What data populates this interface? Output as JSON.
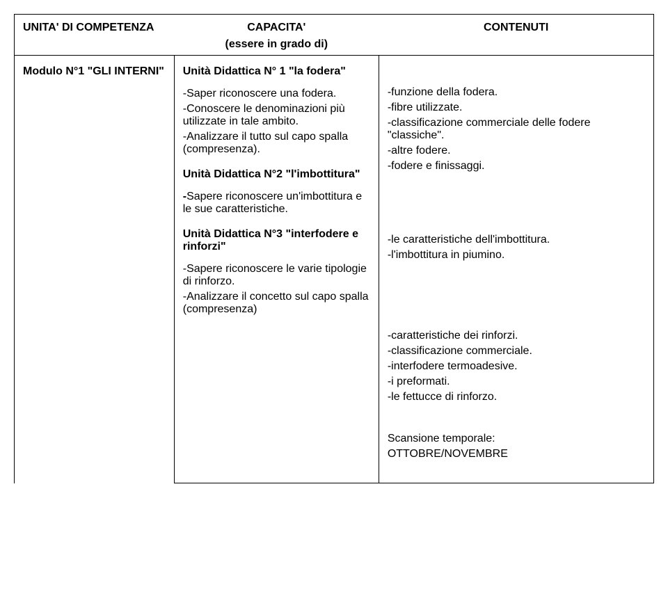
{
  "header": {
    "col1": "UNITA' DI COMPETENZA",
    "col2": "CAPACITA'",
    "col2_sub": "(essere in grado di)",
    "col3": "CONTENUTI"
  },
  "module": {
    "title": "Modulo N°1 \"GLI INTERNI\""
  },
  "capacita": {
    "u1_title": "Unità Didattica N° 1 \"la fodera\"",
    "u1_l1": "-Saper riconoscere una fodera.",
    "u1_l2": "-Conoscere le denominazioni più utilizzate in tale ambito.",
    "u1_l3": "-Analizzare il tutto sul capo spalla (compresenza).",
    "u2_title": "Unità Didattica N°2 \"l'imbottitura\"",
    "u2_l1": "-Sapere riconoscere un'imbottitura e le sue caratteristiche.",
    "u3_title": "Unità Didattica N°3 \"interfodere e rinforzi\"",
    "u3_l1": "-Sapere riconoscere le varie tipologie di rinforzo.",
    "u3_l2": "-Analizzare il concetto sul capo spalla (compresenza)"
  },
  "contenuti": {
    "b1_l1": "-funzione della fodera.",
    "b1_l2": "-fibre utilizzate.",
    "b1_l3": "-classificazione commerciale delle fodere \"classiche\".",
    "b1_l4": "-altre fodere.",
    "b1_l5": "-fodere e finissaggi.",
    "b2_l1": "-le caratteristiche dell'imbottitura.",
    "b2_l2": "-l'imbottitura in piumino.",
    "b3_l1": "-caratteristiche dei rinforzi.",
    "b3_l2": "-classificazione commerciale.",
    "b3_l3": "-interfodere termoadesive.",
    "b3_l4": "-i preformati.",
    "b3_l5": "-le fettucce di rinforzo.",
    "scan_label": "Scansione temporale:",
    "scan_value": "OTTOBRE/NOVEMBRE"
  }
}
